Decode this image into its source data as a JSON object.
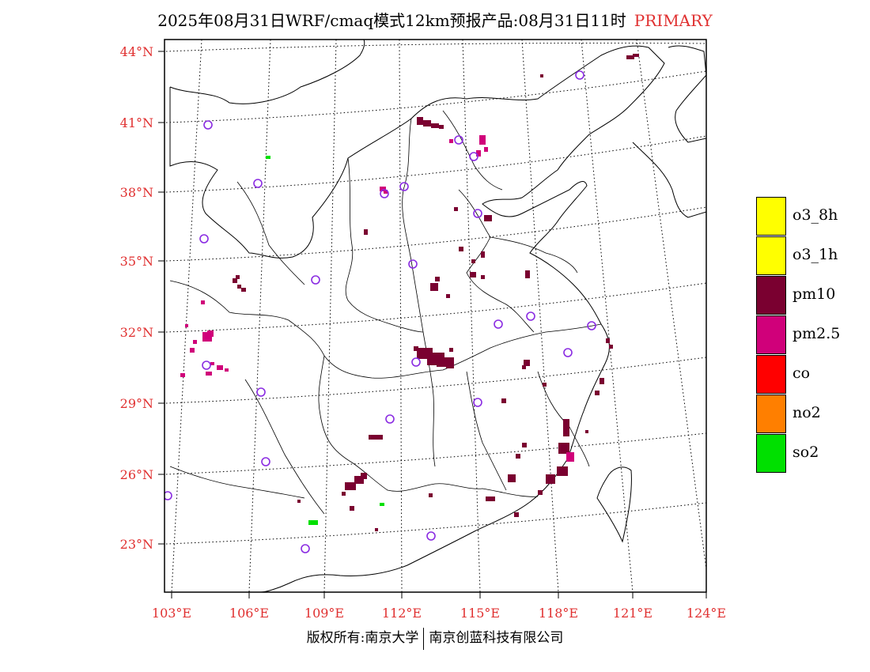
{
  "title": {
    "main": "2025年08月31日WRF/cmaq模式12km预报产品:08月31日11时",
    "tag": "PRIMARY"
  },
  "lat_labels": [
    "44°N",
    "41°N",
    "38°N",
    "35°N",
    "32°N",
    "29°N",
    "26°N",
    "23°N"
  ],
  "lon_labels": [
    "103°E",
    "106°E",
    "109°E",
    "112°E",
    "115°E",
    "118°E",
    "121°E",
    "124°E"
  ],
  "legend": [
    {
      "label": "o3_8h",
      "color": "#ffff00"
    },
    {
      "label": "o3_1h",
      "color": "#ffff00"
    },
    {
      "label": "pm10",
      "color": "#7a0030"
    },
    {
      "label": "pm2.5",
      "color": "#d0007a"
    },
    {
      "label": "co",
      "color": "#ff0000"
    },
    {
      "label": "no2",
      "color": "#ff7f00"
    },
    {
      "label": "so2",
      "color": "#00e000"
    }
  ],
  "footer": {
    "left": "版权所有:南京大学",
    "right": "南京创蓝科技有限公司"
  }
}
